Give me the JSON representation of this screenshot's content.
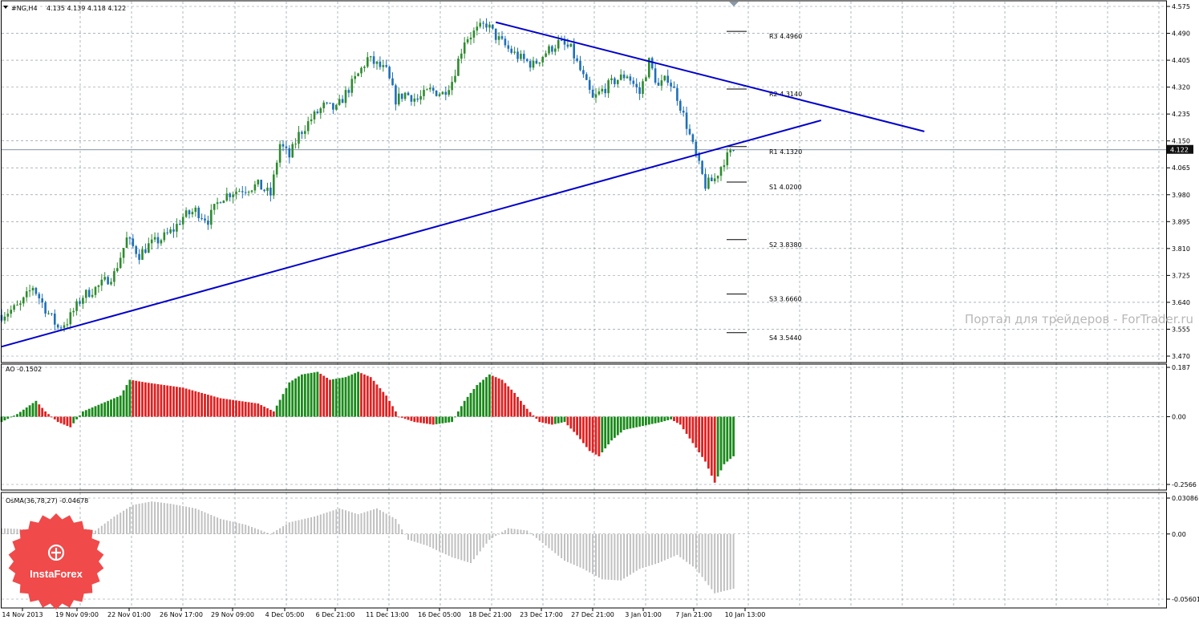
{
  "header": {
    "symbol_label": "#NG,H4",
    "ohlc_label": "4.135 4.139 4.118 4.122",
    "ao_label": "AO -0.1502",
    "osma_label": "OsMA(36,78,27) -0.04678"
  },
  "watermark": "Портал для трейдеров - ForTrader.ru",
  "logo": {
    "text": "InstaForex",
    "color": "#f04a4a"
  },
  "colors": {
    "bull": "#2e8b2e",
    "bear": "#1f6fb8",
    "trendline": "#0000cc",
    "ao_up": "#1a8a1a",
    "ao_down": "#e02020",
    "osma": "#c0c0c0",
    "grid": "#7a8a99"
  },
  "chart_data": [
    {
      "type": "candlestick",
      "name": "#NG,H4",
      "ylim": [
        3.47,
        4.575
      ],
      "y_ticks": [
        "4.575",
        "4.490",
        "4.405",
        "4.320",
        "4.235",
        "4.150",
        "4.065",
        "3.980",
        "3.895",
        "3.810",
        "3.725",
        "3.640",
        "3.555",
        "3.470"
      ],
      "x_ticks": [
        "14 Nov 2013",
        "19 Nov 09:00",
        "22 Nov 01:00",
        "26 Nov 17:00",
        "29 Nov 09:00",
        "4 Dec 05:00",
        "6 Dec 21:00",
        "11 Dec 13:00",
        "16 Dec 05:00",
        "18 Dec 21:00",
        "23 Dec 17:00",
        "27 Dec 21:00",
        "3 Jan 01:00",
        "7 Jan 21:00",
        "10 Jan 13:00"
      ],
      "current_price": "4.122",
      "close_path": [
        [
          0,
          3.6
        ],
        [
          6,
          3.63
        ],
        [
          10,
          3.69
        ],
        [
          14,
          3.62
        ],
        [
          18,
          3.56
        ],
        [
          21,
          3.58
        ],
        [
          26,
          3.66
        ],
        [
          31,
          3.69
        ],
        [
          36,
          3.73
        ],
        [
          40,
          3.84
        ],
        [
          44,
          3.79
        ],
        [
          47,
          3.82
        ],
        [
          51,
          3.84
        ],
        [
          55,
          3.87
        ],
        [
          58,
          3.91
        ],
        [
          62,
          3.93
        ],
        [
          66,
          3.9
        ],
        [
          70,
          3.97
        ],
        [
          74,
          3.99
        ],
        [
          78,
          4.0
        ],
        [
          82,
          4.01
        ],
        [
          86,
          3.98
        ],
        [
          89,
          4.14
        ],
        [
          92,
          4.1
        ],
        [
          95,
          4.17
        ],
        [
          99,
          4.22
        ],
        [
          103,
          4.26
        ],
        [
          107,
          4.25
        ],
        [
          110,
          4.3
        ],
        [
          114,
          4.36
        ],
        [
          117,
          4.41
        ],
        [
          120,
          4.39
        ],
        [
          123,
          4.37
        ],
        [
          126,
          4.28
        ],
        [
          129,
          4.3
        ],
        [
          133,
          4.28
        ],
        [
          137,
          4.31
        ],
        [
          141,
          4.3
        ],
        [
          144,
          4.34
        ],
        [
          148,
          4.47
        ],
        [
          152,
          4.5
        ],
        [
          155,
          4.52
        ],
        [
          158,
          4.48
        ],
        [
          162,
          4.44
        ],
        [
          166,
          4.41
        ],
        [
          170,
          4.39
        ],
        [
          174,
          4.43
        ],
        [
          178,
          4.46
        ],
        [
          182,
          4.44
        ],
        [
          186,
          4.35
        ],
        [
          189,
          4.28
        ],
        [
          192,
          4.31
        ],
        [
          196,
          4.34
        ],
        [
          200,
          4.36
        ],
        [
          204,
          4.3
        ],
        [
          207,
          4.4
        ],
        [
          210,
          4.32
        ],
        [
          213,
          4.35
        ],
        [
          216,
          4.29
        ],
        [
          219,
          4.2
        ],
        [
          222,
          4.1
        ],
        [
          225,
          4.01
        ],
        [
          228,
          4.03
        ],
        [
          231,
          4.09
        ],
        [
          234,
          4.12
        ]
      ],
      "trendlines": [
        {
          "name": "rising-support",
          "from": [
            0,
            3.5
          ],
          "to": [
            262,
            4.215
          ]
        },
        {
          "name": "falling-resistance",
          "from": [
            158,
            4.525
          ],
          "to": [
            295,
            4.18
          ]
        }
      ],
      "pivots": [
        {
          "label": "R3 4.4960",
          "value": 4.496
        },
        {
          "label": "R2 4.3140",
          "value": 4.314
        },
        {
          "label": "R1 4.1320",
          "value": 4.132
        },
        {
          "label": "S1 4.0200",
          "value": 4.02
        },
        {
          "label": "S2 3.8380",
          "value": 3.838
        },
        {
          "label": "S3 3.6660",
          "value": 3.666
        },
        {
          "label": "S4 3.5440",
          "value": 3.544
        }
      ]
    },
    {
      "type": "bar",
      "name": "AO",
      "ylim": [
        -0.2566,
        0.187
      ],
      "y_ticks": [
        "0.187",
        "0.00",
        "-0.2566"
      ],
      "value_path": [
        [
          0,
          -0.02
        ],
        [
          5,
          0.01
        ],
        [
          11,
          0.06
        ],
        [
          14,
          0.02
        ],
        [
          18,
          -0.02
        ],
        [
          22,
          -0.04
        ],
        [
          26,
          0.02
        ],
        [
          32,
          0.05
        ],
        [
          38,
          0.08
        ],
        [
          41,
          0.14
        ],
        [
          46,
          0.13
        ],
        [
          52,
          0.12
        ],
        [
          58,
          0.11
        ],
        [
          64,
          0.09
        ],
        [
          70,
          0.07
        ],
        [
          76,
          0.06
        ],
        [
          82,
          0.05
        ],
        [
          87,
          0.02
        ],
        [
          92,
          0.13
        ],
        [
          96,
          0.16
        ],
        [
          101,
          0.17
        ],
        [
          105,
          0.14
        ],
        [
          110,
          0.15
        ],
        [
          114,
          0.17
        ],
        [
          118,
          0.15
        ],
        [
          123,
          0.08
        ],
        [
          127,
          0.0
        ],
        [
          132,
          -0.02
        ],
        [
          138,
          -0.03
        ],
        [
          144,
          -0.02
        ],
        [
          148,
          0.06
        ],
        [
          152,
          0.12
        ],
        [
          156,
          0.16
        ],
        [
          160,
          0.14
        ],
        [
          164,
          0.09
        ],
        [
          168,
          0.03
        ],
        [
          172,
          -0.02
        ],
        [
          176,
          -0.03
        ],
        [
          180,
          -0.02
        ],
        [
          184,
          -0.07
        ],
        [
          188,
          -0.13
        ],
        [
          191,
          -0.15
        ],
        [
          195,
          -0.09
        ],
        [
          199,
          -0.05
        ],
        [
          203,
          -0.04
        ],
        [
          207,
          -0.03
        ],
        [
          211,
          -0.02
        ],
        [
          214,
          -0.01
        ],
        [
          217,
          -0.03
        ],
        [
          221,
          -0.1
        ],
        [
          225,
          -0.17
        ],
        [
          228,
          -0.25
        ],
        [
          231,
          -0.18
        ],
        [
          234,
          -0.15
        ]
      ]
    },
    {
      "type": "bar",
      "name": "OsMA(36,78,27)",
      "ylim": [
        -0.05601,
        0.03086
      ],
      "y_ticks": [
        "0.03086",
        "0.00",
        "-0.05601"
      ],
      "value_path": [
        [
          0,
          0.005
        ],
        [
          8,
          0.004
        ],
        [
          16,
          0.004
        ],
        [
          24,
          0.006
        ],
        [
          30,
          0.003
        ],
        [
          36,
          0.015
        ],
        [
          42,
          0.025
        ],
        [
          48,
          0.028
        ],
        [
          54,
          0.026
        ],
        [
          62,
          0.022
        ],
        [
          70,
          0.013
        ],
        [
          78,
          0.008
        ],
        [
          86,
          0.0
        ],
        [
          92,
          0.01
        ],
        [
          100,
          0.015
        ],
        [
          108,
          0.022
        ],
        [
          114,
          0.017
        ],
        [
          120,
          0.022
        ],
        [
          126,
          0.013
        ],
        [
          130,
          -0.005
        ],
        [
          136,
          -0.01
        ],
        [
          144,
          -0.02
        ],
        [
          150,
          -0.025
        ],
        [
          156,
          -0.005
        ],
        [
          162,
          0.005
        ],
        [
          168,
          0.003
        ],
        [
          174,
          -0.01
        ],
        [
          180,
          -0.023
        ],
        [
          186,
          -0.03
        ],
        [
          192,
          -0.039
        ],
        [
          198,
          -0.04
        ],
        [
          204,
          -0.03
        ],
        [
          210,
          -0.025
        ],
        [
          216,
          -0.018
        ],
        [
          222,
          -0.03
        ],
        [
          228,
          -0.051
        ],
        [
          234,
          -0.047
        ]
      ]
    }
  ]
}
